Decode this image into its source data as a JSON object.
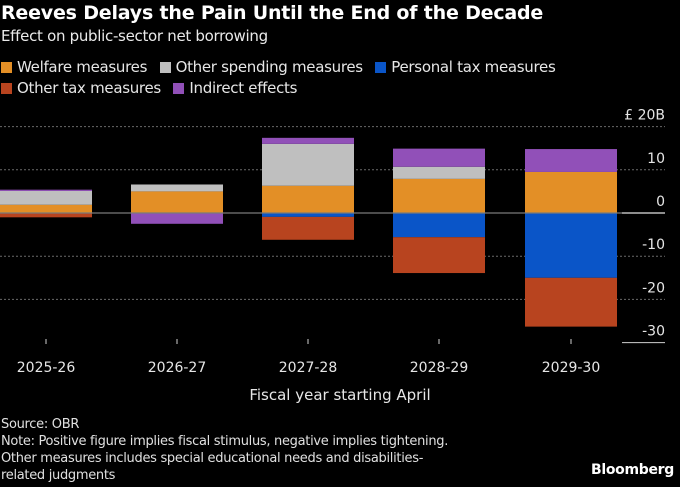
{
  "header": {
    "title": "Reeves Delays the Pain Until the End of the Decade",
    "subtitle": "Effect on public-sector net borrowing"
  },
  "legend": {
    "row1": [
      {
        "label": "Welfare measures",
        "color": "#E38F26"
      },
      {
        "label": "Other spending measures",
        "color": "#BFBFBF"
      },
      {
        "label": "Personal tax measures",
        "color": "#0A55C8"
      }
    ],
    "row2": [
      {
        "label": "Other tax measures",
        "color": "#B8441F"
      },
      {
        "label": "Indirect effects",
        "color": "#9150B8"
      }
    ]
  },
  "chart_data": {
    "type": "bar",
    "stacked": true,
    "title": "Reeves Delays the Pain Until the End of the Decade",
    "subtitle": "Effect on public-sector net borrowing",
    "xlabel": "Fiscal year starting April",
    "ylabel": "",
    "y_unit_label": "£ 20B",
    "categories": [
      "2025-26",
      "2026-27",
      "2027-28",
      "2028-29",
      "2029-30"
    ],
    "ylim": [
      -30,
      20
    ],
    "yticks": [
      20,
      10,
      0,
      -10,
      -20,
      -30
    ],
    "ytick_labels": [
      "£ 20B",
      "10",
      "0",
      "-10",
      "-20",
      "-30"
    ],
    "grid": true,
    "legend_position": "top-left",
    "series": [
      {
        "name": "Welfare measures",
        "color": "#E38F26",
        "values": [
          1.9,
          5.0,
          6.3,
          7.9,
          9.5
        ]
      },
      {
        "name": "Other spending measures",
        "color": "#BFBFBF",
        "values": [
          3.2,
          1.6,
          9.7,
          2.8,
          0
        ]
      },
      {
        "name": "Personal tax measures",
        "color": "#0A55C8",
        "values": [
          0,
          0,
          -0.9,
          -5.6,
          -15.0
        ]
      },
      {
        "name": "Other tax measures",
        "color": "#B8441F",
        "values": [
          -1.0,
          0,
          -5.3,
          -8.3,
          -11.3
        ]
      },
      {
        "name": "Indirect effects",
        "color": "#9150B8",
        "values": [
          0.3,
          -2.5,
          1.4,
          4.2,
          5.3
        ]
      }
    ]
  },
  "footer": {
    "source": "Source: OBR",
    "note1": "Note: Positive figure implies fiscal stimulus, negative implies tightening.",
    "note2": "Other measures includes special educational needs and disabilities-",
    "note3": "related judgments",
    "brand": "Bloomberg"
  }
}
